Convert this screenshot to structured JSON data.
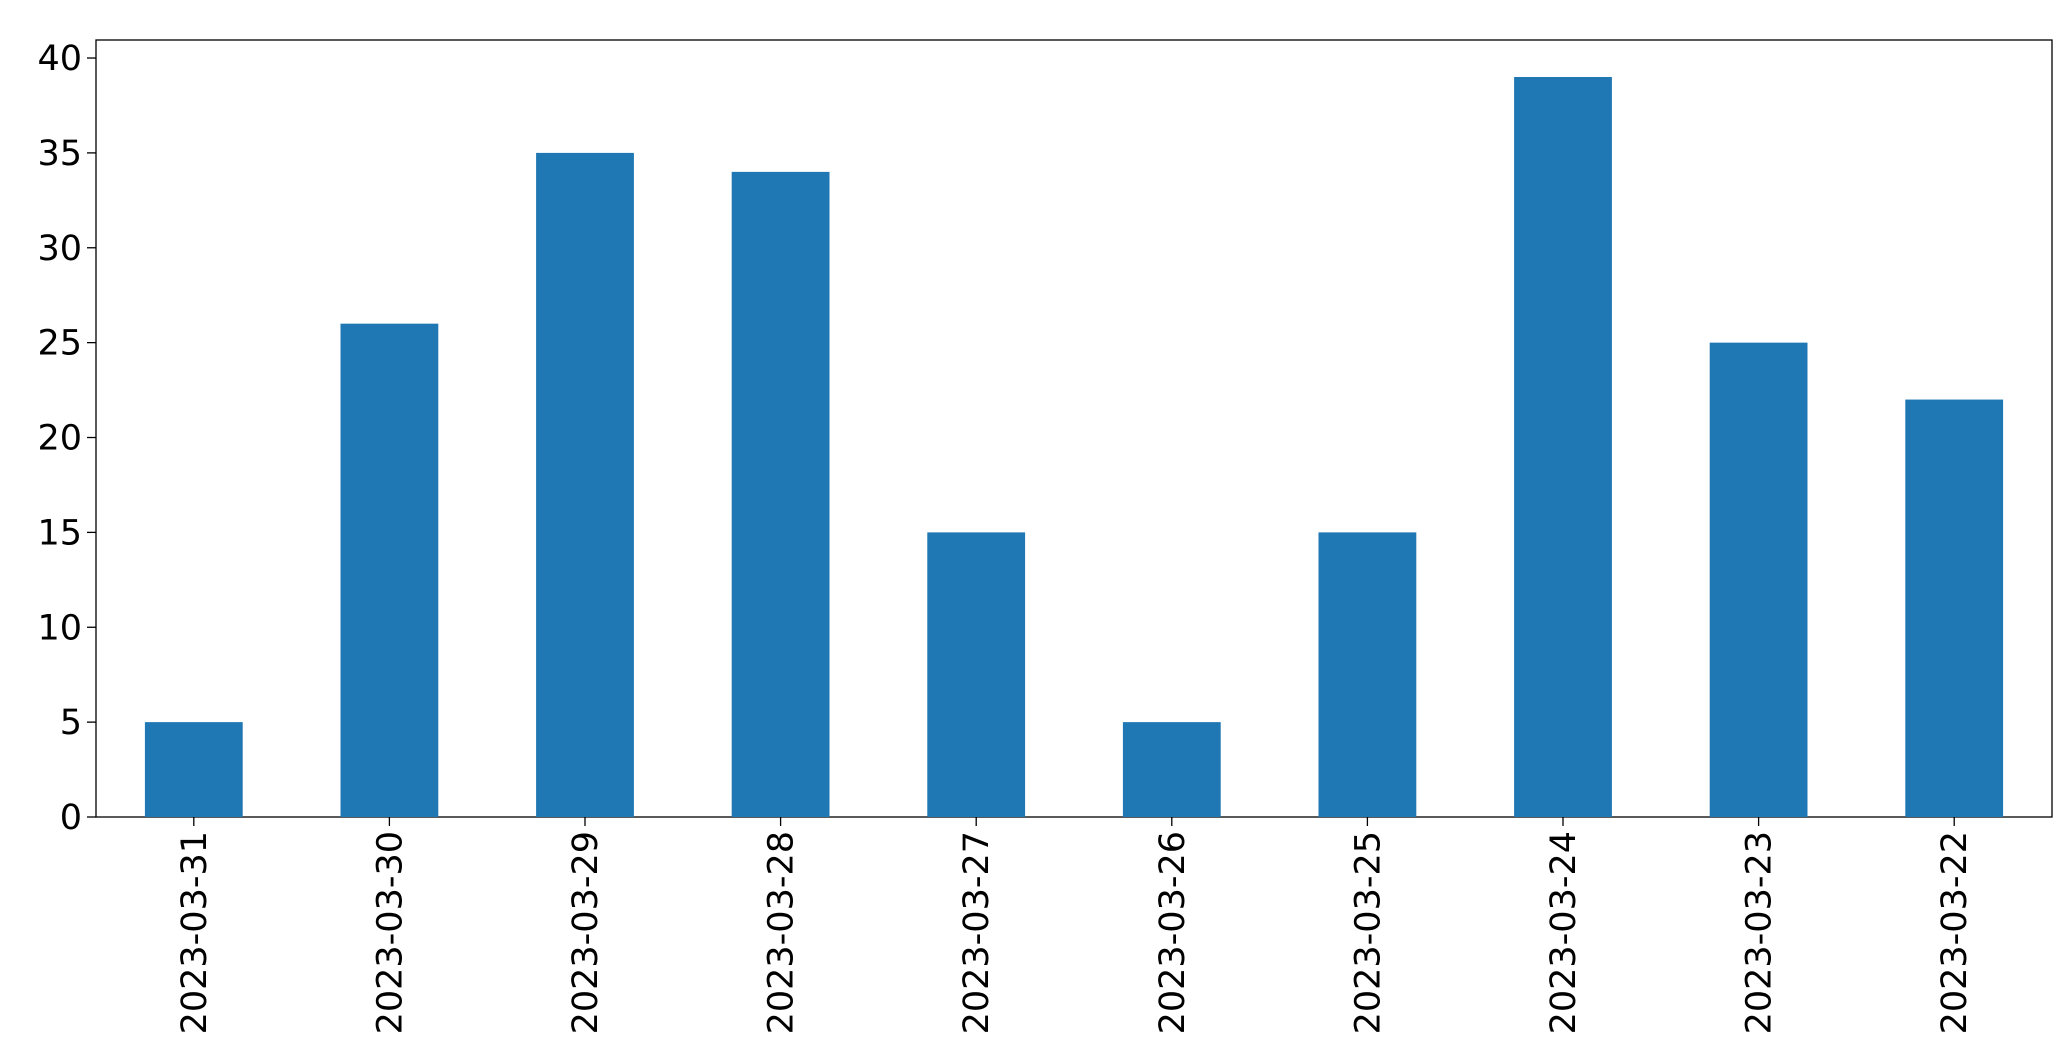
{
  "chart_data": {
    "type": "bar",
    "categories": [
      "2023-03-31",
      "2023-03-30",
      "2023-03-29",
      "2023-03-28",
      "2023-03-27",
      "2023-03-26",
      "2023-03-25",
      "2023-03-24",
      "2023-03-23",
      "2023-03-22"
    ],
    "values": [
      5,
      26,
      35,
      34,
      15,
      5,
      15,
      39,
      25,
      22
    ],
    "color": "#1f77b4",
    "ylim": [
      0,
      40.95
    ],
    "yticks": [
      0,
      5,
      10,
      15,
      20,
      25,
      30,
      35,
      40
    ],
    "grid": false
  }
}
